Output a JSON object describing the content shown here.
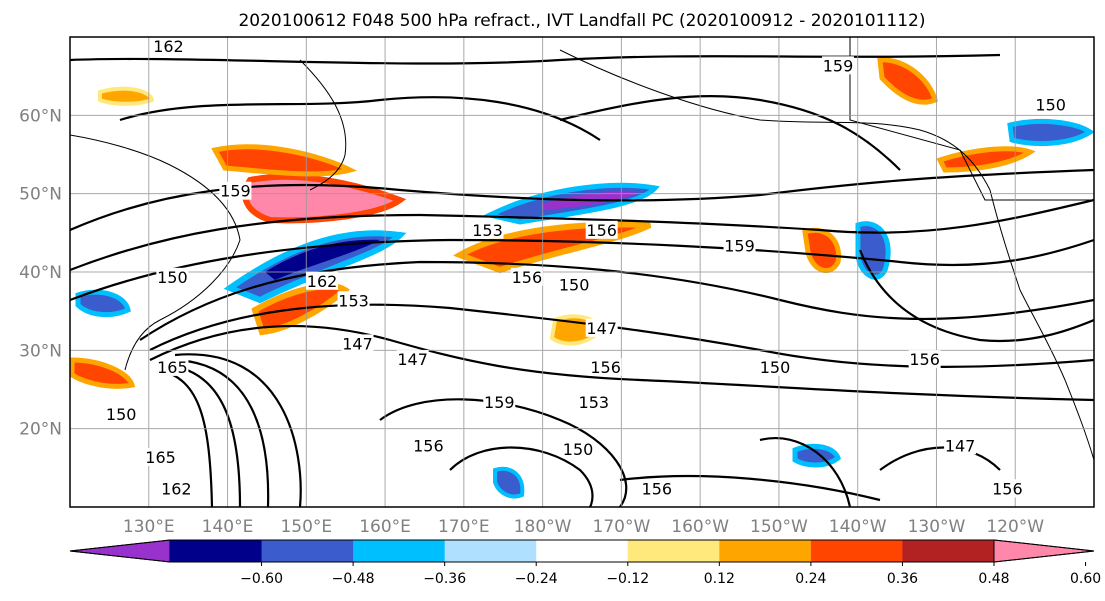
{
  "title": "2020100612 F048 500 hPa refract., IVT Landfall PC (2020100912 - 2020101112)",
  "map": {
    "lon_range": [
      120,
      250
    ],
    "lat_range": [
      10,
      70
    ],
    "lat_labels": [
      "20°N",
      "30°N",
      "40°N",
      "50°N",
      "60°N"
    ],
    "lat_values": [
      20,
      30,
      40,
      50,
      60
    ],
    "lon_labels": [
      "130°E",
      "140°E",
      "150°E",
      "160°E",
      "170°E",
      "180°W",
      "170°W",
      "160°W",
      "150°W",
      "140°W",
      "130°W",
      "120°W"
    ],
    "lon_values": [
      130,
      140,
      150,
      160,
      170,
      180,
      190,
      200,
      210,
      220,
      230,
      240
    ],
    "gridlines": true
  },
  "colorbar": {
    "ticks": [
      "−0.60",
      "−0.48",
      "−0.36",
      "−0.24",
      "−0.12",
      "0.12",
      "0.24",
      "0.36",
      "0.48",
      "0.60"
    ],
    "colors": [
      "#9932cc",
      "#00008b",
      "#3a5ccc",
      "#00bfff",
      "#b0e0ff",
      "#ffffff",
      "#ffe87c",
      "#ffa500",
      "#ff4500",
      "#b22222",
      "#ff88aa"
    ],
    "extend": "both"
  },
  "contour_labels": [
    {
      "text": "162",
      "lon": 132.5,
      "lat": 68.5
    },
    {
      "text": "159",
      "lon": 217.5,
      "lat": 66
    },
    {
      "text": "159",
      "lon": 141,
      "lat": 50
    },
    {
      "text": "153",
      "lon": 173,
      "lat": 45
    },
    {
      "text": "156",
      "lon": 187.5,
      "lat": 45
    },
    {
      "text": "159",
      "lon": 205,
      "lat": 43
    },
    {
      "text": "150",
      "lon": 133,
      "lat": 39
    },
    {
      "text": "162",
      "lon": 152,
      "lat": 38.5
    },
    {
      "text": "153",
      "lon": 156,
      "lat": 36
    },
    {
      "text": "156",
      "lon": 178,
      "lat": 39
    },
    {
      "text": "150",
      "lon": 184,
      "lat": 38
    },
    {
      "text": "147",
      "lon": 187.5,
      "lat": 32.5
    },
    {
      "text": "147",
      "lon": 156.5,
      "lat": 30.5
    },
    {
      "text": "147",
      "lon": 163.5,
      "lat": 28.5
    },
    {
      "text": "156",
      "lon": 188,
      "lat": 27.5
    },
    {
      "text": "150",
      "lon": 209.5,
      "lat": 27.5
    },
    {
      "text": "156",
      "lon": 228.5,
      "lat": 28.5
    },
    {
      "text": "165",
      "lon": 133,
      "lat": 27.5
    },
    {
      "text": "159",
      "lon": 174.5,
      "lat": 23
    },
    {
      "text": "153",
      "lon": 186.5,
      "lat": 23
    },
    {
      "text": "150",
      "lon": 126.5,
      "lat": 21.5
    },
    {
      "text": "156",
      "lon": 165.5,
      "lat": 17.5
    },
    {
      "text": "150",
      "lon": 184.5,
      "lat": 17
    },
    {
      "text": "165",
      "lon": 131.5,
      "lat": 16
    },
    {
      "text": "162",
      "lon": 133.5,
      "lat": 12
    },
    {
      "text": "156",
      "lon": 194.5,
      "lat": 12
    },
    {
      "text": "147",
      "lon": 233,
      "lat": 17.5
    },
    {
      "text": "156",
      "lon": 239,
      "lat": 12
    },
    {
      "text": "150",
      "lon": 244.5,
      "lat": 61
    }
  ]
}
